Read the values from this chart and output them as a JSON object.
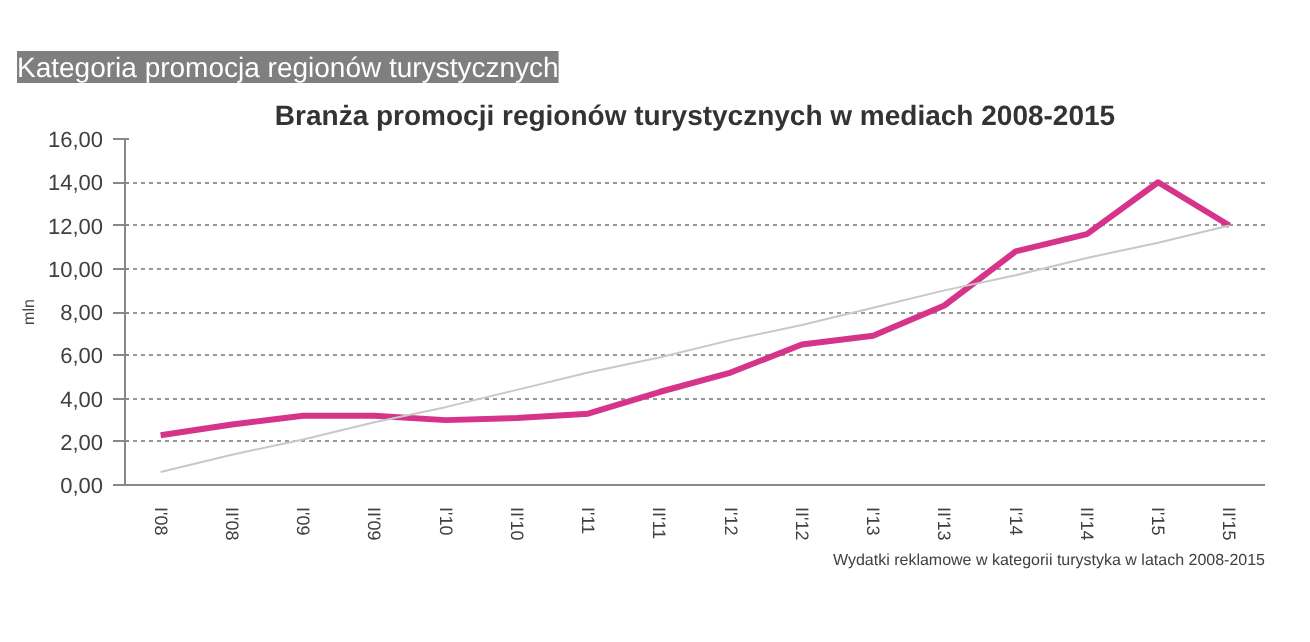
{
  "chart_data": {
    "type": "line",
    "title": "Branża promocji regionów turystycznych w mediach 2008-2015",
    "ylabel": "mln",
    "annotations": [
      "Kategoria promocja regionów turystycznych",
      "Wydatki reklamowe w kategorii turystyka w latach 2008-2015"
    ],
    "categories": [
      "I'08",
      "II'08",
      "I'09",
      "II'09",
      "I'10",
      "II'10",
      "I'11",
      "II'11",
      "I'12",
      "II'12",
      "I'13",
      "II'13",
      "I'14",
      "II'14",
      "I'15",
      "II'15"
    ],
    "series": [
      {
        "color": "#d6338a",
        "values": [
          2.3,
          2.8,
          3.2,
          3.2,
          3.0,
          3.1,
          3.3,
          4.3,
          5.2,
          6.5,
          6.9,
          8.3,
          10.8,
          11.6,
          14.0,
          12.0
        ]
      },
      {
        "type": "line",
        "color": "#c8c8c8",
        "values": [
          0.6,
          1.4,
          2.1,
          2.9,
          3.6,
          4.4,
          5.2,
          5.9,
          6.7,
          7.4,
          8.2,
          9.0,
          9.7,
          10.5,
          11.2,
          12.0
        ]
      }
    ],
    "ylim": [
      0,
      16
    ],
    "yticks": [
      {
        "value": 0,
        "label": "0,00"
      },
      {
        "value": 2,
        "label": "2,00"
      },
      {
        "value": 4,
        "label": "4,00"
      },
      {
        "value": 6,
        "label": "6,00"
      },
      {
        "value": 8,
        "label": "8,00"
      },
      {
        "value": 10,
        "label": "10,00"
      },
      {
        "value": 12,
        "label": "12,00"
      },
      {
        "value": 14,
        "label": "14,00"
      },
      {
        "value": 16,
        "label": "16,00"
      }
    ],
    "grid": "y",
    "marker": "none",
    "line_style": "solid"
  }
}
